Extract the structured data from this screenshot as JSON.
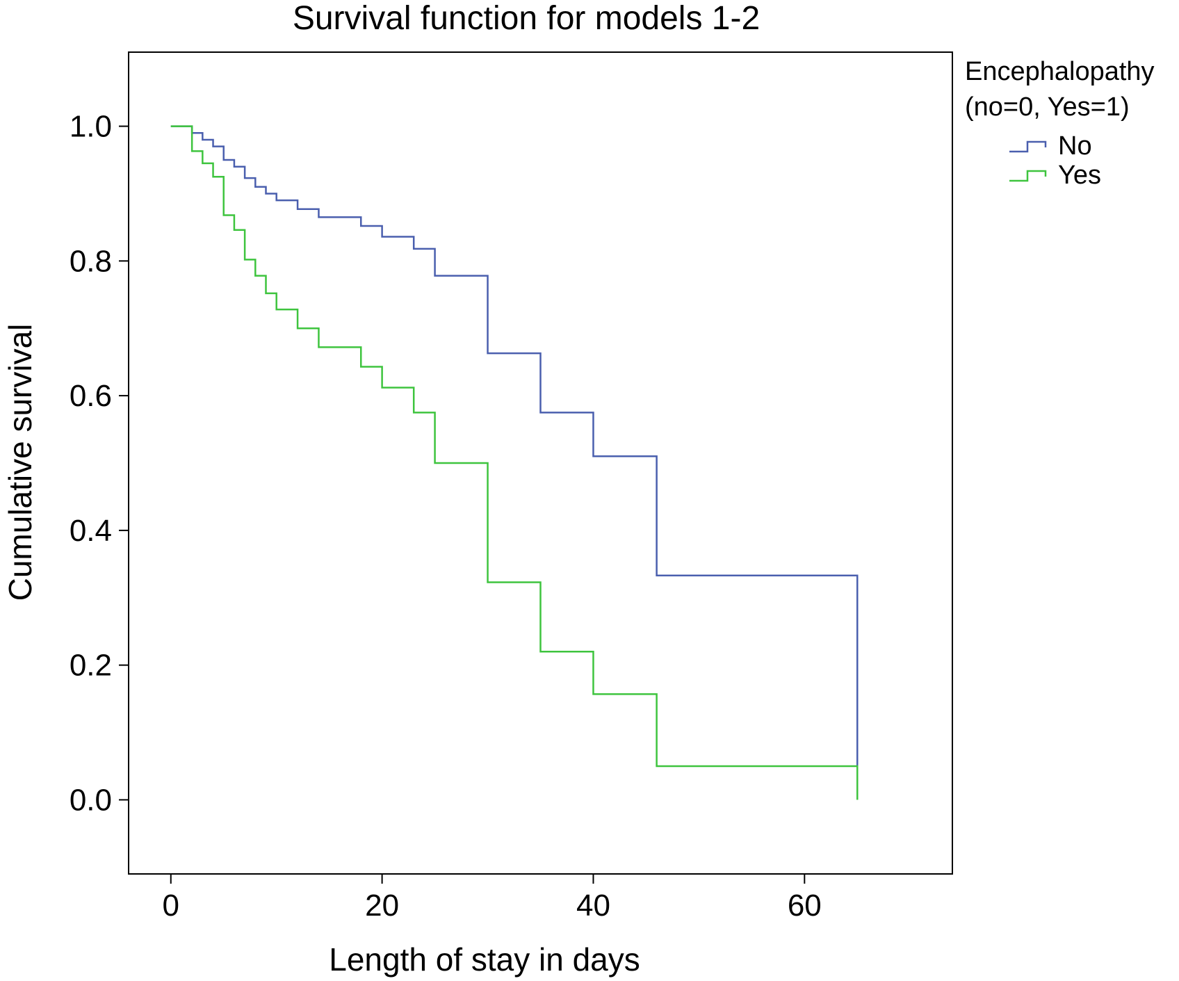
{
  "chart_data": {
    "type": "line",
    "step": true,
    "title": "Survival function for models 1-2",
    "xlabel": "Length of stay in days",
    "ylabel": "Cumulative survival",
    "xlim": [
      -4,
      74
    ],
    "ylim": [
      -0.11,
      1.11
    ],
    "xticks": [
      0,
      20,
      40,
      60
    ],
    "yticks": [
      0.0,
      0.2,
      0.4,
      0.6,
      0.8,
      1.0
    ],
    "xtick_labels": [
      "0",
      "20",
      "40",
      "60"
    ],
    "ytick_labels": [
      "0.0",
      "0.2",
      "0.4",
      "0.6",
      "0.8",
      "1.0"
    ],
    "grid": false,
    "legend": {
      "title_lines": [
        "Encephalopathy",
        "(no=0, Yes=1)"
      ],
      "placement": "right"
    },
    "series": [
      {
        "name": "No",
        "color": "#4a5fae",
        "x": [
          0,
          2,
          3,
          4,
          5,
          6,
          7,
          8,
          9,
          10,
          12,
          14,
          18,
          20,
          23,
          25,
          30,
          35,
          40,
          46,
          65,
          65
        ],
        "y": [
          1.0,
          0.99,
          0.98,
          0.97,
          0.95,
          0.94,
          0.923,
          0.91,
          0.9,
          0.89,
          0.877,
          0.865,
          0.852,
          0.836,
          0.818,
          0.778,
          0.663,
          0.575,
          0.51,
          0.333,
          0.333,
          0.05
        ]
      },
      {
        "name": "Yes",
        "color": "#3ec43e",
        "x": [
          0,
          2,
          3,
          4,
          5,
          6,
          7,
          8,
          9,
          10,
          12,
          14,
          18,
          20,
          23,
          25,
          30,
          35,
          40,
          46,
          65,
          65
        ],
        "y": [
          1.0,
          0.963,
          0.945,
          0.925,
          0.868,
          0.846,
          0.802,
          0.778,
          0.752,
          0.728,
          0.7,
          0.672,
          0.643,
          0.612,
          0.575,
          0.5,
          0.323,
          0.22,
          0.157,
          0.05,
          0.05,
          0.0
        ]
      }
    ]
  }
}
